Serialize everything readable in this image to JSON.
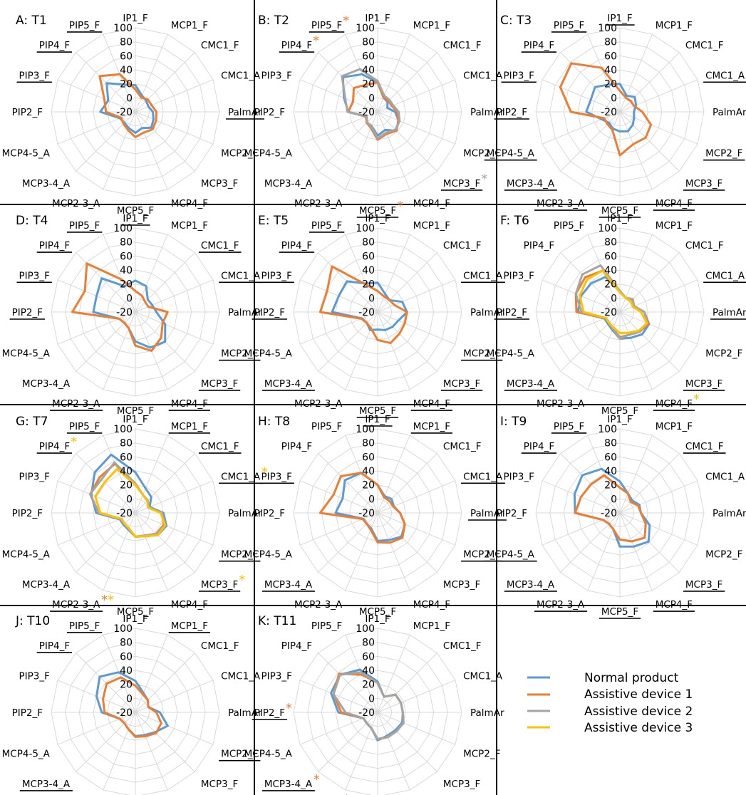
{
  "chart_data": {
    "type": "radar",
    "axes": [
      "IP1_F",
      "MCP1_F",
      "CMC1_F",
      "CMC1_A",
      "PalmAr",
      "MCP2_F",
      "MCP3_F",
      "MCP4_F",
      "MCP5_F",
      "MCP2-3_A",
      "MCP3-4_A",
      "MCP4-5_A",
      "PIP2_F",
      "PIP3_F",
      "PIP4_F",
      "PIP5_F"
    ],
    "radial_ticks": [
      "100",
      "80",
      "60",
      "40",
      "20",
      "0",
      "-20"
    ],
    "rlim": [
      -20,
      100
    ],
    "series_styles": [
      {
        "name": "Normal product",
        "color": "#5b9bd5"
      },
      {
        "name": "Assistive device 1",
        "color": "#ed7d31"
      },
      {
        "name": "Assistive device 2",
        "color": "#a5a5a5"
      },
      {
        "name": "Assistive device 3",
        "color": "#ffc000"
      }
    ],
    "panels": [
      {
        "title": "A: T1",
        "underlined": [
          "PalmAr",
          "PIP3_F",
          "PIP4_F",
          "PIP5_F"
        ],
        "stars": [],
        "values": [
          [
            18,
            5,
            2,
            0,
            5,
            8,
            12,
            5,
            10,
            5,
            2,
            4,
            30,
            22,
            38,
            22
          ],
          [
            12,
            2,
            5,
            5,
            10,
            12,
            15,
            12,
            16,
            8,
            4,
            2,
            22,
            28,
            52,
            38
          ]
        ]
      },
      {
        "title": "B: T2",
        "underlined": [
          "MCP3_F",
          "MCP5_F",
          "PIP4_F",
          "PIP5_F"
        ],
        "stars": [
          {
            "axis": "PIP5_F",
            "colors": [
              "#ed7d31"
            ]
          },
          {
            "axis": "PIP4_F",
            "colors": [
              "#ed7d31"
            ]
          },
          {
            "axis": "MCP3_F",
            "colors": [
              "#a5a5a5"
            ]
          },
          {
            "axis": "MCP5_F",
            "colors": [
              "#ed7d31"
            ]
          }
        ],
        "values": [
          [
            22,
            2,
            0,
            -5,
            5,
            12,
            18,
            8,
            14,
            2,
            2,
            -3,
            22,
            32,
            50,
            38
          ],
          [
            22,
            2,
            2,
            2,
            8,
            12,
            18,
            14,
            20,
            5,
            2,
            -2,
            22,
            18,
            28,
            22
          ],
          [
            24,
            5,
            4,
            4,
            10,
            14,
            16,
            12,
            18,
            3,
            1,
            -3,
            23,
            30,
            52,
            46
          ]
        ]
      },
      {
        "title": "C: T3",
        "underlined": [
          "IP1_F",
          "CMC1_A",
          "MCP2_F",
          "MCP3_F",
          "MCP4_F",
          "MCP5_F",
          "MCP2-3_A",
          "MCP3-4_A",
          "MCP4-5_A",
          "PIP2_F",
          "PIP3_F",
          "PIP4_F",
          "PIP5_F"
        ],
        "stars": [],
        "values": [
          [
            20,
            5,
            10,
            5,
            0,
            2,
            6,
            10,
            8,
            6,
            2,
            8,
            28,
            25,
            30,
            22
          ],
          [
            10,
            2,
            2,
            2,
            12,
            28,
            32,
            30,
            42,
            8,
            5,
            4,
            50,
            72,
            78,
            48
          ]
        ]
      },
      {
        "title": "D: T4",
        "underlined": [
          "IP1_F",
          "CMC1_F",
          "CMC1_A",
          "MCP2_F",
          "MCP3_F",
          "MCP4_F",
          "MCP2-3_A",
          "PIP2_F",
          "PIP3_F",
          "PIP4_F",
          "PIP5_F"
        ],
        "stars": [],
        "values": [
          [
            25,
            20,
            5,
            6,
            10,
            26,
            40,
            35,
            22,
            5,
            2,
            5,
            40,
            40,
            48,
            20
          ],
          [
            10,
            5,
            0,
            0,
            26,
            22,
            32,
            40,
            28,
            5,
            2,
            5,
            70,
            58,
            78,
            30
          ]
        ]
      },
      {
        "title": "E: T5",
        "underlined": [
          "CMC1_A",
          "MCP2_F",
          "MCP3_F",
          "MCP4_F",
          "MCP5_F",
          "MCP3-4_A",
          "PIP2_F",
          "PIP3_F",
          "PIP4_F",
          "PIP5_F"
        ],
        "stars": [],
        "values": [
          [
            22,
            8,
            4,
            18,
            22,
            12,
            10,
            8,
            5,
            8,
            2,
            4,
            45,
            40,
            42,
            24
          ],
          [
            10,
            4,
            4,
            6,
            22,
            22,
            24,
            28,
            20,
            5,
            2,
            5,
            62,
            58,
            72,
            22
          ]
        ]
      },
      {
        "title": "F: T6",
        "underlined": [
          "CMC1_A",
          "PalmAr",
          "MCP3_F",
          "MCP4_F",
          "MCP3-4_A",
          "PIP2_F"
        ],
        "stars": [
          {
            "axis": "CMC1_A",
            "colors": [
              "#ffc000"
            ]
          },
          {
            "axis": "MCP4_F",
            "colors": [
              "#ffc000"
            ]
          }
        ],
        "values": [
          [
            10,
            2,
            5,
            0,
            15,
            25,
            25,
            20,
            18,
            8,
            4,
            4,
            40,
            40,
            38,
            34
          ],
          [
            8,
            2,
            4,
            2,
            15,
            24,
            20,
            15,
            16,
            6,
            2,
            2,
            42,
            48,
            50,
            44
          ],
          [
            10,
            2,
            6,
            2,
            15,
            22,
            20,
            15,
            18,
            6,
            2,
            2,
            35,
            48,
            56,
            52
          ],
          [
            8,
            2,
            2,
            0,
            10,
            22,
            18,
            12,
            10,
            4,
            2,
            2,
            32,
            42,
            46,
            44
          ]
        ]
      },
      {
        "title": "G: T7",
        "underlined": [
          "MCP1_F",
          "CMC1_F",
          "CMC1_A",
          "MCP2_F",
          "MCP3_F",
          "MCP2-3_A",
          "PIP4_F",
          "PIP5_F"
        ],
        "stars": [
          {
            "axis": "PIP4_F",
            "colors": [
              "#ffc000"
            ]
          },
          {
            "axis": "CMC1_A",
            "colors": [
              "#ffc000"
            ]
          },
          {
            "axis": "MCP3_F",
            "colors": [
              "#ffc000"
            ]
          },
          {
            "axis": "MCP2-3_A",
            "colors": [
              "#ed7d31",
              "#ffc000"
            ]
          }
        ],
        "values": [
          [
            38,
            18,
            12,
            2,
            20,
            28,
            25,
            16,
            14,
            6,
            4,
            4,
            36,
            48,
            62,
            70
          ],
          [
            22,
            8,
            5,
            0,
            18,
            24,
            22,
            15,
            14,
            4,
            2,
            2,
            32,
            50,
            52,
            56
          ],
          [
            22,
            8,
            5,
            0,
            18,
            26,
            22,
            15,
            14,
            4,
            2,
            2,
            32,
            50,
            48,
            58
          ],
          [
            20,
            8,
            4,
            0,
            16,
            26,
            25,
            16,
            14,
            4,
            2,
            2,
            30,
            42,
            42,
            48
          ]
        ]
      },
      {
        "title": "H: T8",
        "underlined": [
          "IP1_F",
          "MCP1_F",
          "CMC1_A",
          "PalmAr",
          "MCP2_F",
          "MCP3-4_A",
          "PIP3_F"
        ],
        "stars": [],
        "values": [
          [
            20,
            6,
            8,
            5,
            12,
            22,
            28,
            22,
            20,
            4,
            2,
            2,
            40,
            34,
            46,
            42
          ],
          [
            20,
            4,
            4,
            4,
            12,
            22,
            30,
            26,
            22,
            6,
            2,
            3,
            62,
            48,
            54,
            42
          ]
        ]
      },
      {
        "title": "I: T9",
        "underlined": [
          "CMC1_F",
          "MCP3_F",
          "MCP4_F",
          "MCP5_F",
          "MCP2-3_A",
          "MCP3-4_A",
          "MCP4-5_A",
          "PIP4_F",
          "PIP5_F"
        ],
        "stars": [],
        "values": [
          [
            25,
            10,
            5,
            10,
            10,
            26,
            38,
            32,
            28,
            5,
            2,
            6,
            44,
            50,
            56,
            48
          ],
          [
            16,
            10,
            2,
            8,
            10,
            20,
            30,
            24,
            18,
            5,
            2,
            6,
            44,
            40,
            38,
            38
          ]
        ]
      },
      {
        "title": "J: T10",
        "underlined": [
          "MCP1_F",
          "MCP2_F",
          "MCP2-3_A",
          "MCP3-4_A",
          "PIP4_F",
          "PIP5_F"
        ],
        "stars": [],
        "values": [
          [
            25,
            10,
            5,
            0,
            15,
            30,
            20,
            15,
            14,
            6,
            2,
            4,
            28,
            40,
            52,
            42
          ],
          [
            18,
            8,
            5,
            0,
            10,
            20,
            22,
            17,
            15,
            6,
            2,
            4,
            24,
            30,
            38,
            34
          ]
        ]
      },
      {
        "title": "K: T11",
        "underlined": [
          "PIP2_F",
          "MCP2-3_A",
          "MCP3-4_A"
        ],
        "stars": [
          {
            "axis": "PIP2_F",
            "colors": [
              "#ed7d31"
            ]
          },
          {
            "axis": "MCP3-4_A",
            "colors": [
              "#ed7d31"
            ]
          },
          {
            "axis": "MCP2-3_A",
            "colors": [
              "#ed7d31"
            ]
          }
        ],
        "values": [
          [
            24,
            4,
            16,
            16,
            16,
            18,
            16,
            16,
            20,
            4,
            2,
            2,
            36,
            52,
            56,
            46
          ],
          [
            22,
            4,
            16,
            16,
            16,
            20,
            18,
            18,
            18,
            4,
            2,
            2,
            32,
            48,
            58,
            38
          ],
          [
            22,
            4,
            16,
            16,
            16,
            20,
            18,
            18,
            18,
            4,
            2,
            2,
            26,
            48,
            56,
            42
          ]
        ]
      }
    ],
    "legend": [
      "Normal product",
      "Assistive device 1",
      "Assistive device 2",
      "Assistive device 3"
    ]
  }
}
